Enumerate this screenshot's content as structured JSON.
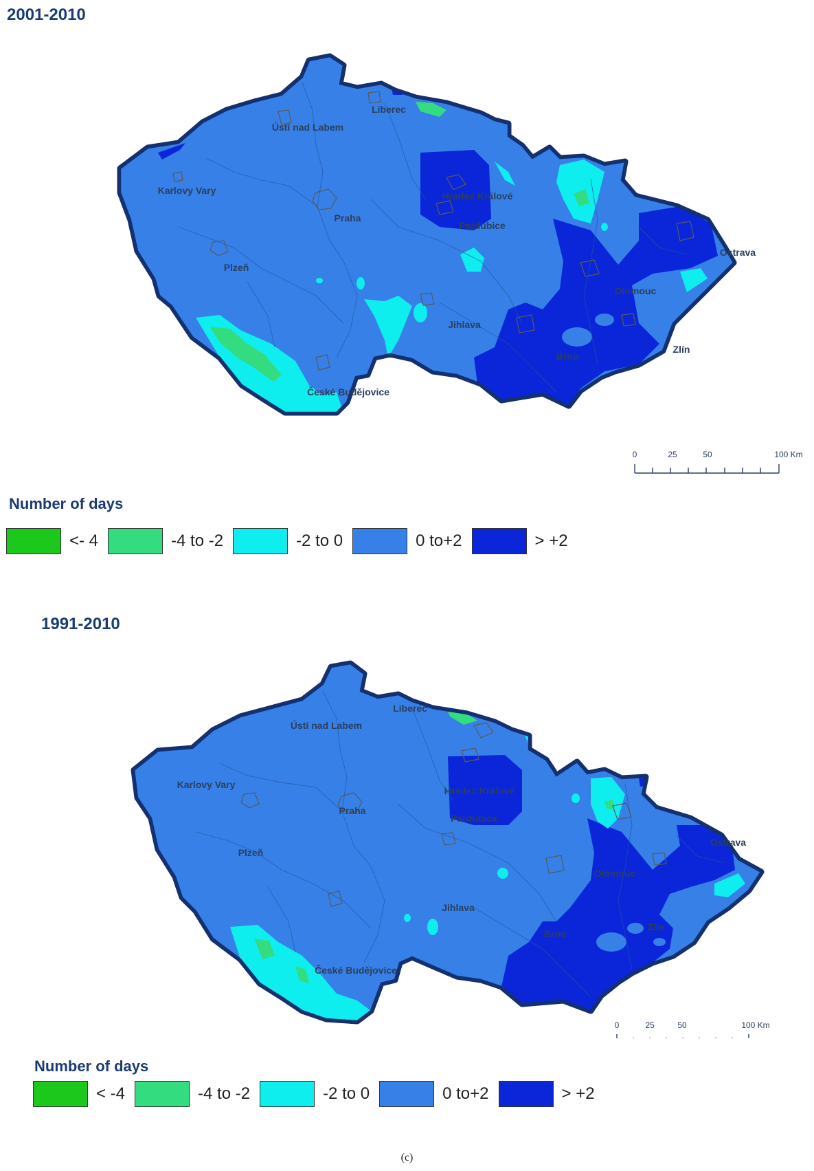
{
  "legend_colors": {
    "lt_minus4": "#1bc81b",
    "minus4_to_minus2": "#34dc80",
    "minus2_to_0": "#0eeeee",
    "zero_to_plus2": "#3680e8",
    "gt_plus2": "#0a26d8",
    "border": "#ffffff",
    "outline": "#14306e"
  },
  "panels": [
    {
      "title": "2001-2010",
      "cities": [
        "Liberec",
        "Ústí nad Labem",
        "Karlovy Vary",
        "Hradec Králové",
        "Praha",
        "Pardubice",
        "Ostrava",
        "Plzeň",
        "Olomouc",
        "Jihlava",
        "Brno",
        "Zlín",
        "České Budějovice"
      ],
      "scale": {
        "ticks": [
          "0",
          "25",
          "50",
          "100 Km"
        ]
      },
      "legend": {
        "title": "Number of days",
        "items": [
          "<- 4",
          "-4 to -2",
          "-2 to 0",
          "0 to+2",
          "> +2"
        ]
      }
    },
    {
      "title": "1991-2010",
      "cities": [
        "Liberec",
        "Ústí nad Labem",
        "Karlovy Vary",
        "Hradec Králové",
        "Praha",
        "Pardubice",
        "Ostrava",
        "Plzeň",
        "Olomouc",
        "Jihlava",
        "Brno",
        "Zlín",
        "České Budějovice"
      ],
      "scale": {
        "ticks": [
          "0",
          "25",
          "50",
          "100 Km"
        ]
      },
      "legend": {
        "title": "Number of days",
        "items": [
          "< -4",
          "-4 to -2",
          "-2 to 0",
          "0 to+2",
          "> +2"
        ]
      }
    }
  ],
  "caption": "(c)"
}
